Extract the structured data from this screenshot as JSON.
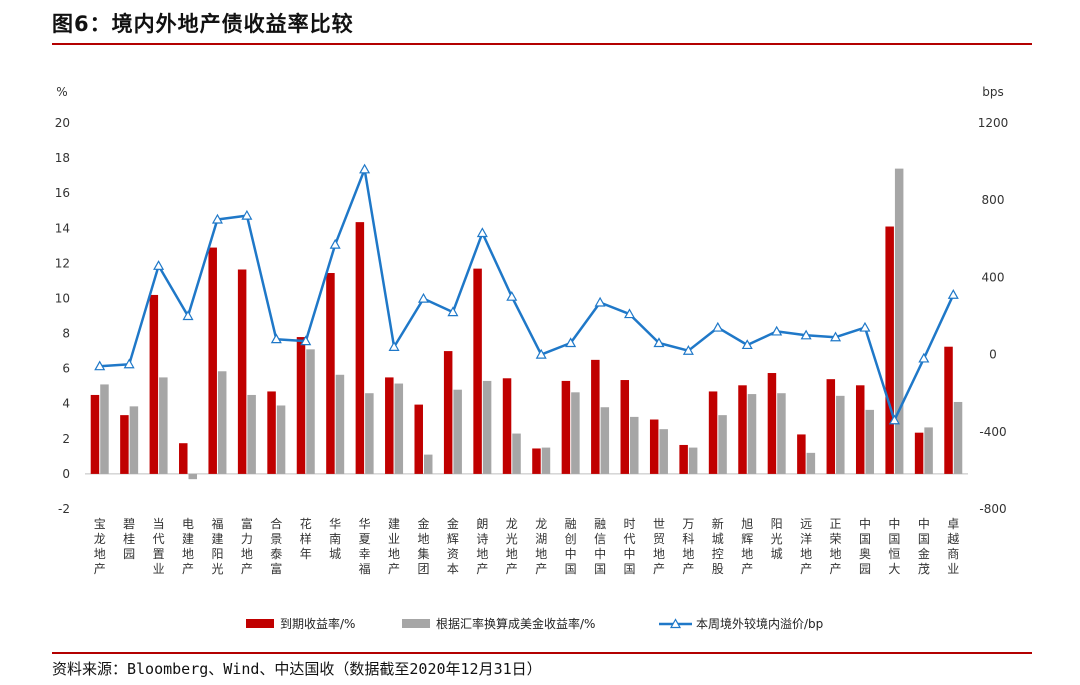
{
  "header": {
    "title": "图6：境内外地产债收益率比较"
  },
  "footer": {
    "source": "资料来源：Bloomberg、Wind、中达国收（数据截至2020年12月31日）"
  },
  "colors": {
    "red": "#c00000",
    "gray": "#a6a6a6",
    "blue": "#1f78c8",
    "rule": "#b30000"
  },
  "chart_data": {
    "type": "bar",
    "title": "",
    "left_axis": {
      "unit_label": "%",
      "ylim": [
        -2,
        20
      ],
      "ticks": [
        -2,
        0,
        2,
        4,
        6,
        8,
        10,
        12,
        14,
        16,
        18,
        20
      ]
    },
    "right_axis": {
      "unit_label": "bps",
      "ylim": [
        -800,
        1200
      ],
      "ticks": [
        -800,
        -400,
        0,
        400,
        800,
        1200
      ]
    },
    "grid": false,
    "legend_position": "bottom",
    "categories": [
      "宝龙地产",
      "碧桂园",
      "当代置业",
      "电建地产",
      "福建阳光",
      "富力地产",
      "合景泰富",
      "花样年",
      "华南城",
      "华夏幸福",
      "建业地产",
      "金地集团",
      "金辉资本",
      "朗诗地产",
      "龙光地产",
      "龙湖地产",
      "融创中国",
      "融信中国",
      "时代中国",
      "世贸地产",
      "万科地产",
      "新城控股",
      "旭辉地产",
      "阳光城",
      "远洋地产",
      "正荣地产",
      "中国奥园",
      "中国恒大",
      "中国金茂",
      "卓越商业"
    ],
    "series": [
      {
        "name": "到期收益率/%",
        "type": "bar",
        "axis": "left",
        "color": "#c00000",
        "values": [
          4.5,
          3.35,
          10.2,
          1.75,
          12.9,
          11.65,
          4.7,
          7.8,
          11.45,
          14.35,
          5.5,
          3.95,
          7.0,
          11.7,
          5.45,
          1.45,
          5.3,
          6.5,
          5.35,
          3.1,
          1.65,
          4.7,
          5.05,
          5.75,
          2.25,
          5.4,
          5.05,
          14.1,
          2.35,
          7.25
        ]
      },
      {
        "name": "根据汇率换算成美金收益率/%",
        "type": "bar",
        "axis": "left",
        "color": "#a6a6a6",
        "values": [
          5.1,
          3.85,
          5.5,
          -0.3,
          5.85,
          4.5,
          3.9,
          7.1,
          5.65,
          4.6,
          5.15,
          1.1,
          4.8,
          5.3,
          2.3,
          1.5,
          4.65,
          3.8,
          3.25,
          2.55,
          1.5,
          3.35,
          4.55,
          4.6,
          1.2,
          4.45,
          3.65,
          17.4,
          2.65,
          4.1
        ]
      },
      {
        "name": "本周境外较境内溢价/bp",
        "type": "line",
        "axis": "right",
        "color": "#1f78c8",
        "values": [
          -60,
          -50,
          460,
          200,
          700,
          720,
          80,
          70,
          570,
          960,
          40,
          290,
          220,
          630,
          300,
          0,
          60,
          270,
          210,
          60,
          20,
          140,
          50,
          120,
          100,
          90,
          140,
          -340,
          -20,
          310
        ]
      }
    ]
  }
}
